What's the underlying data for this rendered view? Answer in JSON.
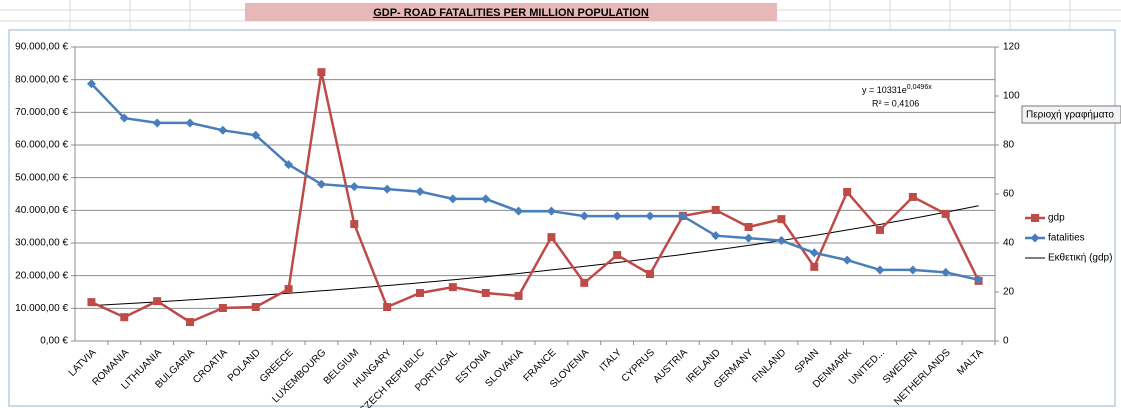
{
  "chart_data": {
    "type": "line",
    "title": "GDP- ROAD FATALITIES PER MILLION POPULATION",
    "categories": [
      "LATVIA",
      "ROMANIA",
      "LITHUANIA",
      "BULGARIA",
      "CROATIA",
      "POLAND",
      "GREECE",
      "LUXEMBOURG",
      "BELGIUM",
      "HUNGARY",
      "CZECH REPUBLIC",
      "PORTUGAL",
      "ESTONIA",
      "SLOVAKIA",
      "FRANCE",
      "SLOVENIA",
      "ITALY",
      "CYPRUS",
      "AUSTRIA",
      "IRELAND",
      "GERMANY",
      "FINLAND",
      "SPAIN",
      "DENMARK",
      "UNITED...",
      "SWEDEN",
      "NETHERLANDS",
      "MALTA"
    ],
    "series": [
      {
        "name": "gdp",
        "color": "#be4b48",
        "marker": "square",
        "values": [
          11900,
          7300,
          12200,
          5800,
          10100,
          10400,
          15900,
          82300,
          35800,
          10400,
          14700,
          16500,
          14700,
          13800,
          31800,
          17800,
          26300,
          20500,
          38300,
          40100,
          34900,
          37300,
          22700,
          45600,
          34000,
          44100,
          38900,
          18400
        ]
      },
      {
        "name": "fatalities",
        "color": "#4a7ebb",
        "marker": "diamond",
        "axis": "y2",
        "values": [
          105,
          91,
          89,
          89,
          86,
          84,
          72,
          64,
          63,
          62,
          61,
          58,
          58,
          53,
          53,
          51,
          51,
          51,
          51,
          43,
          42,
          41,
          36,
          33,
          29,
          29,
          28,
          25
        ]
      }
    ],
    "trendline": {
      "name": "Εκθετική (gdp)",
      "color": "#000000",
      "a": 10331,
      "b": 0.0496,
      "equation": "y = 10331e",
      "equation_exponent": "0,0496x",
      "r_squared": "R² = 0,4106"
    },
    "ylim": [
      0,
      90000
    ],
    "yticks": [
      {
        "value": 0,
        "label": "0,00 €"
      },
      {
        "value": 10000,
        "label": "10.000,00 €"
      },
      {
        "value": 20000,
        "label": "20.000,00 €"
      },
      {
        "value": 30000,
        "label": "30.000,00 €"
      },
      {
        "value": 40000,
        "label": "40.000,00 €"
      },
      {
        "value": 50000,
        "label": "50.000,00 €"
      },
      {
        "value": 60000,
        "label": "60.000,00 €"
      },
      {
        "value": 70000,
        "label": "70.000,00 €"
      },
      {
        "value": 80000,
        "label": "80.000,00 €"
      },
      {
        "value": 90000,
        "label": "90.000,00 €"
      }
    ],
    "y2lim": [
      0,
      120
    ],
    "y2ticks": [
      0,
      20,
      40,
      60,
      80,
      100,
      120
    ],
    "grid": true,
    "legend": "right"
  },
  "ui": {
    "tooltip": "Περιοχή γραφήματο"
  }
}
